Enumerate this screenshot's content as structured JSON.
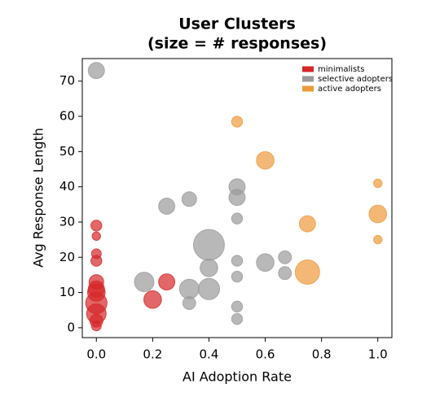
{
  "chart_data": {
    "type": "bubble",
    "title": "User Clusters",
    "subtitle": "(size = # responses)",
    "x_label": "AI Adoption Rate",
    "y_label": "Avg Response Length",
    "xlim": [
      -0.05,
      1.05
    ],
    "ylim": [
      -2.8,
      76.4
    ],
    "xticks": [
      {
        "value": 0,
        "label": "0.0"
      },
      0.2,
      0.4,
      0.6,
      0.8,
      {
        "value": 1,
        "label": "1.0"
      }
    ],
    "yticks": [
      0,
      10,
      20,
      30,
      40,
      50,
      60,
      70
    ],
    "legend": "upper right",
    "series": [
      {
        "name": "minimalists",
        "color": "#d62728",
        "x": [
          0,
          0,
          0,
          0,
          0,
          0,
          0,
          0,
          0,
          0,
          0,
          0.2,
          0.25
        ],
        "values": [
          29,
          26,
          21,
          19,
          13,
          11,
          10,
          7,
          4,
          2,
          0.5,
          8,
          13
        ],
        "sizes": [
          5,
          3,
          4,
          5,
          9,
          11,
          13,
          19,
          16,
          7,
          4,
          13,
          11
        ]
      },
      {
        "name": "selective adopters",
        "color": "#9a9a9a",
        "x": [
          0,
          0.17,
          0.25,
          0.33,
          0.33,
          0.33,
          0.4,
          0.4,
          0.4,
          0.5,
          0.5,
          0.5,
          0.5,
          0.5,
          0.5,
          0.5,
          0.6,
          0.67,
          0.67
        ],
        "values": [
          73,
          13,
          34.5,
          36.5,
          11,
          7,
          23.5,
          17,
          11,
          40,
          37,
          31,
          19,
          14.5,
          6,
          2.5,
          18.5,
          20,
          15.5
        ],
        "sizes": [
          11,
          16,
          11,
          9,
          16,
          7,
          40,
          13,
          19,
          11,
          11,
          5,
          5,
          5,
          5,
          5,
          13,
          7,
          7
        ]
      },
      {
        "name": "active adopters",
        "color": "#ee9a3a",
        "x": [
          0.5,
          0.6,
          0.75,
          0.75,
          1.0,
          1.0,
          1.0
        ],
        "values": [
          58.5,
          47.5,
          29.5,
          15.8,
          41,
          32.3,
          25
        ],
        "sizes": [
          5,
          13,
          11,
          25,
          3,
          13,
          3
        ]
      }
    ]
  }
}
